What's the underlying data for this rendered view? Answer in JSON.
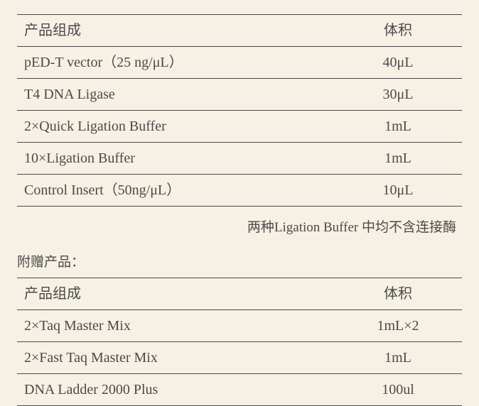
{
  "table1": {
    "header": {
      "col1": "产品组成",
      "col2": "体积"
    },
    "rows": [
      {
        "name": "pED-T vector（25 ng/μL）",
        "volume": "40μL"
      },
      {
        "name": "T4 DNA Ligase",
        "volume": "30μL"
      },
      {
        "name": "2×Quick Ligation Buffer",
        "volume": "1mL"
      },
      {
        "name": "10×Ligation Buffer",
        "volume": "1mL"
      },
      {
        "name": "Control Insert（50ng/μL）",
        "volume": "10μL"
      }
    ]
  },
  "note": "两种Ligation Buffer 中均不含连接酶",
  "subtitle": "附赠产品：",
  "table2": {
    "header": {
      "col1": "产品组成",
      "col2": "体积"
    },
    "rows": [
      {
        "name": "2×Taq Master Mix",
        "volume": "1mL×2"
      },
      {
        "name": "2×Fast Taq Master Mix",
        "volume": "1mL"
      },
      {
        "name": "DNA Ladder 2000 Plus",
        "volume": "100ul"
      }
    ]
  },
  "styling": {
    "background_color": "#f6f1e4",
    "text_color": "#4a4a4a",
    "border_color": "#4a4a4a",
    "font_size_cell": 20,
    "font_size_note": 19,
    "font_size_subtitle": 19,
    "font_family": "SimSun, Times New Roman, serif",
    "table_top_bottom_border_width": 1.5,
    "table_row_border_width": 1,
    "cell_padding": "8px 10px",
    "col2_width": 180,
    "col2_align": "center"
  }
}
